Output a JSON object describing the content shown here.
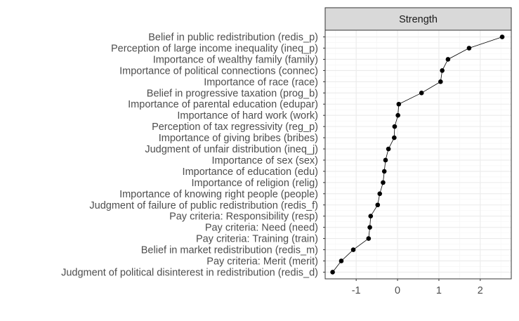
{
  "chart_data": {
    "type": "scatter",
    "panel_title": "Strength",
    "xlabel": "",
    "ylabel": "",
    "xlim": [
      -1.75,
      2.75
    ],
    "x_ticks": [
      -1,
      0,
      1,
      2
    ],
    "x_tick_labels": [
      "-1",
      "0",
      "1",
      "2"
    ],
    "grid": true,
    "connected_line": true,
    "categories": [
      "Belief in public redistribution (redis_p)",
      "Perception of large income inequality (ineq_p)",
      "Importance of wealthy family (family)",
      "Importance of political connections (connec)",
      "Importance of race (race)",
      "Belief in progressive taxation (prog_b)",
      "Importance of parental education (edupar)",
      "Importance of hard work (work)",
      "Perception of tax regressivity (reg_p)",
      "Importance of giving bribes (bribes)",
      "Judgment of unfair distribution (ineq_j)",
      "Importance of sex (sex)",
      "Importance of education (edu)",
      "Importance of religion (relig)",
      "Importance of knowing right people (people)",
      "Judgment of failure of public redistribution (redis_f)",
      "Pay criteria: Responsibility (resp)",
      "Pay criteria: Need (need)",
      "Pay criteria: Training (train)",
      "Belief in market redistribution (redis_m)",
      "Pay criteria: Merit (merit)",
      "Judgment of political disinterest in redistribution (redis_d)"
    ],
    "values": [
      2.53,
      1.73,
      1.22,
      1.08,
      1.04,
      0.58,
      0.03,
      0.01,
      -0.07,
      -0.08,
      -0.22,
      -0.29,
      -0.32,
      -0.35,
      -0.43,
      -0.48,
      -0.65,
      -0.67,
      -0.7,
      -1.07,
      -1.36,
      -1.57
    ],
    "colors": {
      "panel_bg": "#ffffff",
      "grid_major": "#ebebeb",
      "grid_minor": "#f5f5f5",
      "border": "#333333",
      "strip_bg": "#d9d9d9",
      "point": "#000000",
      "text": "#4d4d4d"
    }
  }
}
